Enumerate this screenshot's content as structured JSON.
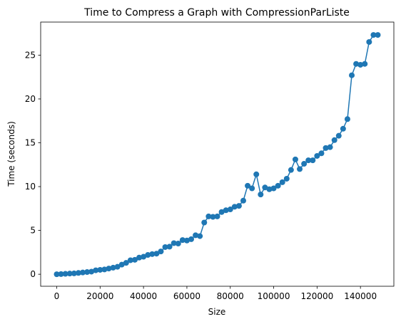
{
  "chart_data": {
    "type": "line",
    "title": "Time to Compress a Graph with CompressionParListe",
    "x_label": "Size",
    "y_label": "Time (seconds)",
    "x": [
      0,
      2000,
      4000,
      6000,
      8000,
      10000,
      12000,
      14000,
      16000,
      18000,
      20000,
      22000,
      24000,
      26000,
      28000,
      30000,
      32000,
      34000,
      36000,
      38000,
      40000,
      42000,
      44000,
      46000,
      48000,
      50000,
      52000,
      54000,
      56000,
      58000,
      60000,
      62000,
      64000,
      66000,
      68000,
      70000,
      72000,
      74000,
      76000,
      78000,
      80000,
      82000,
      84000,
      86000,
      88000,
      90000,
      92000,
      94000,
      96000,
      98000,
      100000,
      102000,
      104000,
      106000,
      108000,
      110000,
      112000,
      114000,
      116000,
      118000,
      120000,
      122000,
      124000,
      126000,
      128000,
      130000,
      132000,
      134000,
      136000,
      138000,
      140000,
      142000,
      144000,
      146000,
      148000
    ],
    "series": [
      {
        "name": "CompressionParListe",
        "color": "#1f77b4",
        "values": [
          0,
          0.02,
          0.05,
          0.08,
          0.1,
          0.15,
          0.2,
          0.25,
          0.3,
          0.45,
          0.5,
          0.55,
          0.65,
          0.75,
          0.85,
          1.1,
          1.3,
          1.6,
          1.65,
          1.9,
          2.0,
          2.2,
          2.3,
          2.35,
          2.6,
          3.1,
          3.15,
          3.55,
          3.5,
          3.9,
          3.85,
          4.0,
          4.45,
          4.35,
          5.9,
          6.6,
          6.55,
          6.6,
          7.1,
          7.3,
          7.4,
          7.7,
          7.8,
          8.4,
          10.1,
          9.8,
          11.4,
          9.1,
          9.9,
          9.7,
          9.8,
          10.1,
          10.5,
          10.9,
          11.9,
          13.1,
          12.0,
          12.6,
          13.0,
          13.0,
          13.5,
          13.8,
          14.4,
          14.5,
          15.3,
          15.8,
          16.6,
          17.7,
          22.7,
          24.0,
          23.9,
          24.0,
          26.5,
          27.3,
          27.3
        ]
      }
    ],
    "xlim": [
      -7400,
      155400
    ],
    "ylim": [
      -1.37,
      28.77
    ],
    "xticks": [
      0,
      20000,
      40000,
      60000,
      80000,
      100000,
      120000,
      140000
    ],
    "yticks": [
      0,
      5,
      10,
      15,
      20,
      25
    ],
    "grid": false,
    "markers": true
  }
}
